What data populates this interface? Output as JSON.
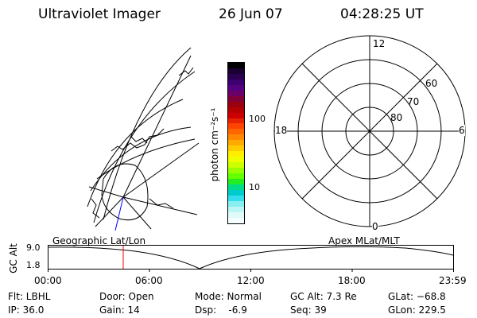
{
  "header": {
    "title": "Ultraviolet Imager",
    "date": "26 Jun 07",
    "time": "04:28:25 UT"
  },
  "colorbar": {
    "unit_label": "photon cm⁻²s⁻¹",
    "ticks": [
      "100",
      "10"
    ],
    "colors": [
      "#000000",
      "#1a0033",
      "#2b0050",
      "#3c0070",
      "#550080",
      "#6b0068",
      "#800038",
      "#990010",
      "#b30000",
      "#cc0000",
      "#e62200",
      "#ff4400",
      "#ff6600",
      "#ff8800",
      "#ffaa00",
      "#ffcc00",
      "#ffee00",
      "#eeff00",
      "#ccff00",
      "#99ff00",
      "#66ff00",
      "#22ee22",
      "#00dd88",
      "#00cccc",
      "#33ddee",
      "#88eeee",
      "#bbf5f5",
      "#e0fafa",
      "#f5ffff"
    ]
  },
  "polar_plot": {
    "mlt_labels": {
      "top": "12",
      "left": "18",
      "right": "6",
      "bottom": "0"
    },
    "lat_labels": [
      "60",
      "70",
      "80"
    ]
  },
  "timeline": {
    "y_label": "GC Alt",
    "y_ticks": [
      "9.0",
      "1.8"
    ],
    "left_title": "Geographic Lat/Lon",
    "right_title": "Apex MLat/MLT",
    "x_ticks": [
      "00:00",
      "06:00",
      "12:00",
      "18:00",
      "23:59"
    ]
  },
  "info": {
    "filter": "Flt: LBHL",
    "ip": "IP: 36.0",
    "door": "Door: Open",
    "gain": "Gain: 14",
    "mode": "Mode: Normal",
    "dsp": "Dsp:    -6.9",
    "gc_alt": "GC Alt: 7.3 Re",
    "seq": "Seq: 39",
    "glat": "GLat: −68.8",
    "glon": "GLon: 229.5"
  }
}
